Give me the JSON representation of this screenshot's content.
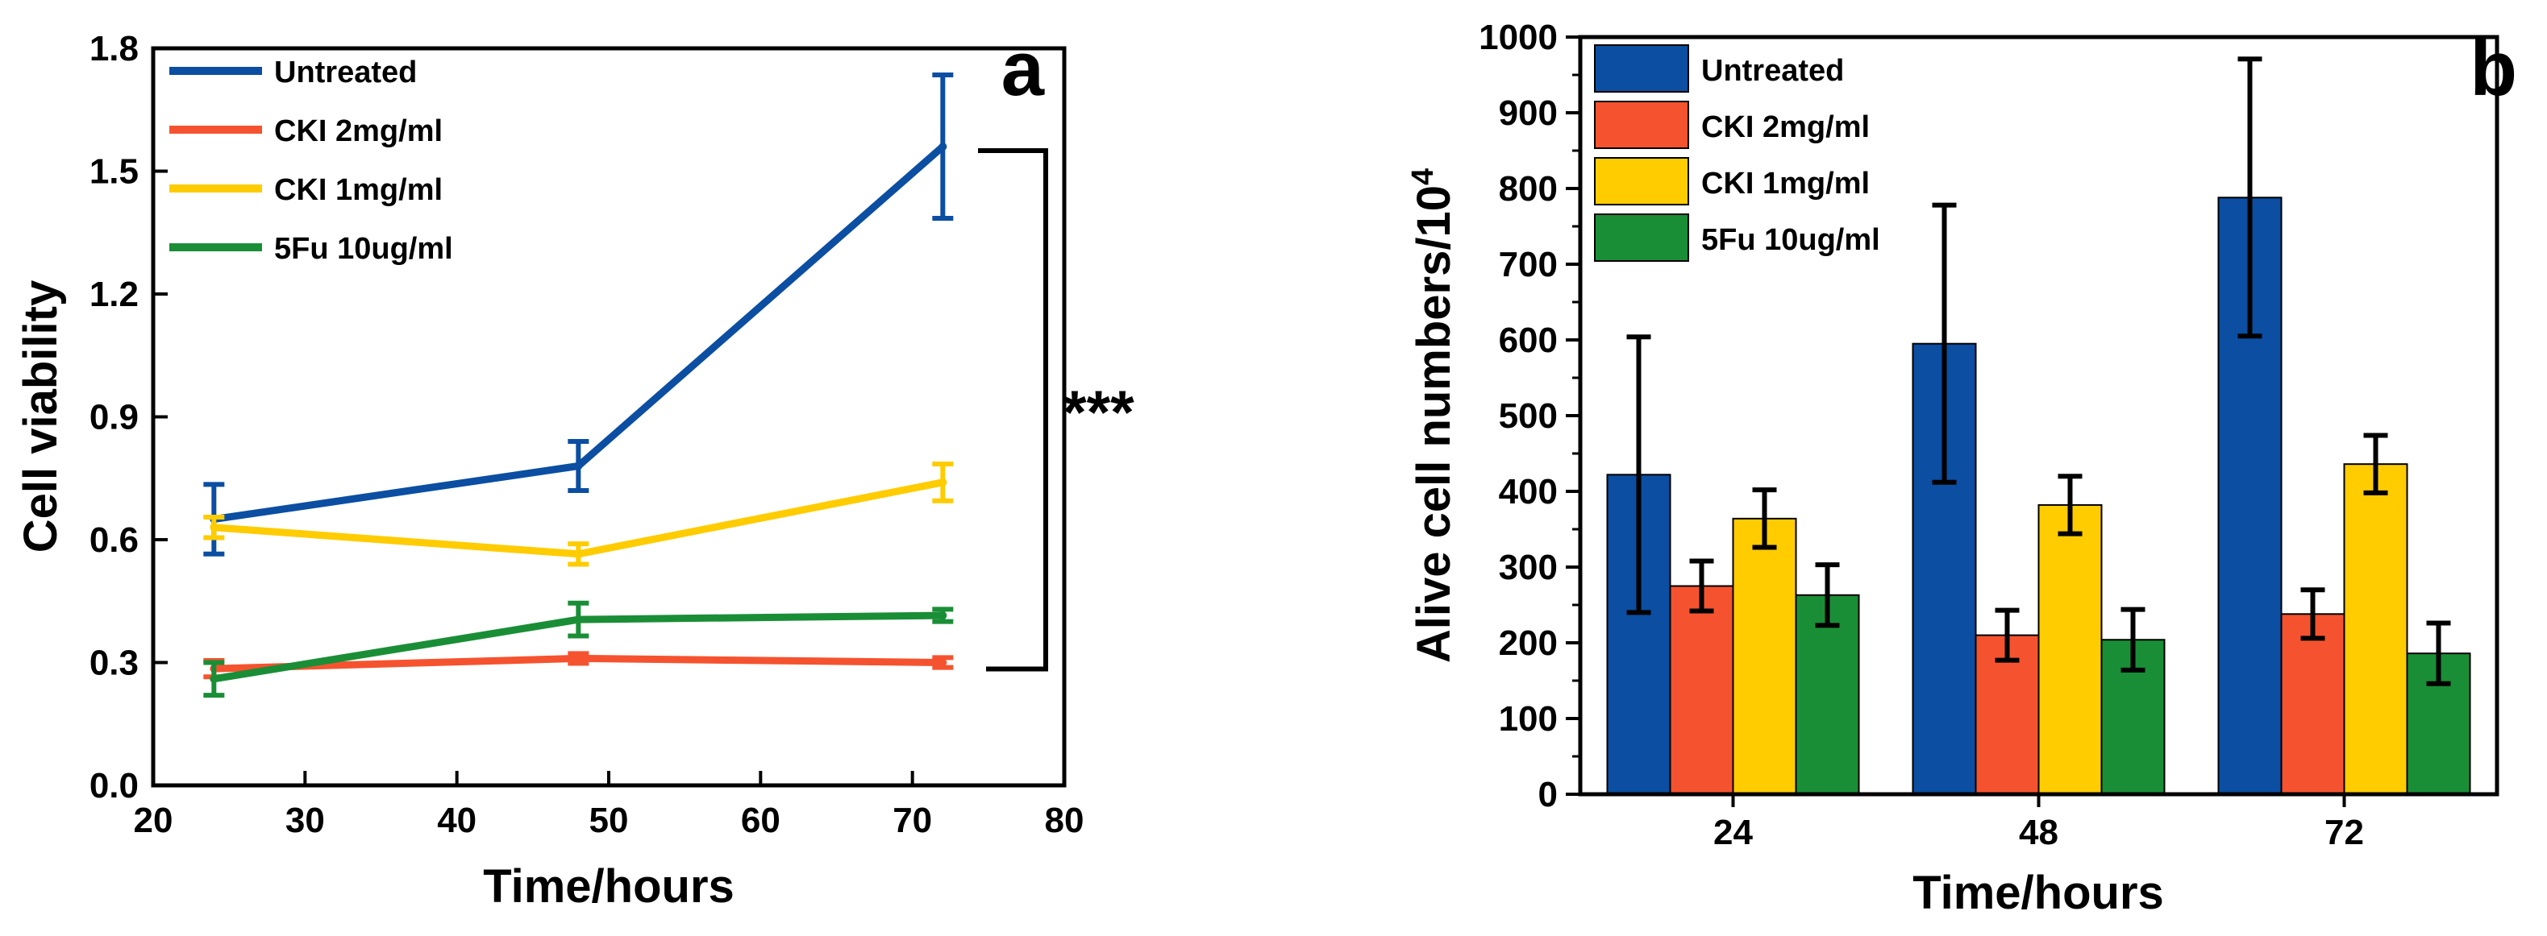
{
  "chart_data": [
    {
      "type": "line",
      "panel_label": "a",
      "xlabel": "Time/hours",
      "ylabel": "Cell viability",
      "xlim": [
        20,
        80
      ],
      "ylim": [
        0.0,
        1.8
      ],
      "x_ticks": [
        "20",
        "30",
        "40",
        "50",
        "60",
        "70",
        "80"
      ],
      "y_ticks": [
        "0.0",
        "0.3",
        "0.6",
        "0.9",
        "1.2",
        "1.5",
        "1.8"
      ],
      "legend_position": "top-left",
      "significance": {
        "label": "***",
        "between": [
          "Untreated",
          "CKI 2mg/ml"
        ],
        "x": 72
      },
      "series": [
        {
          "name": "Untreated",
          "color": "#0B4EA2",
          "x": [
            24,
            48,
            72
          ],
          "y": [
            0.65,
            0.78,
            1.56
          ],
          "err": [
            0.085,
            0.06,
            0.175
          ]
        },
        {
          "name": "CKI 2mg/ml",
          "color": "#F5532F",
          "x": [
            24,
            48,
            72
          ],
          "y": [
            0.285,
            0.31,
            0.3
          ],
          "err": [
            0.02,
            0.012,
            0.012
          ]
        },
        {
          "name": "CKI 1mg/ml",
          "color": "#FFCC00",
          "x": [
            24,
            48,
            72
          ],
          "y": [
            0.63,
            0.565,
            0.74
          ],
          "err": [
            0.025,
            0.025,
            0.045
          ]
        },
        {
          "name": "5Fu 10ug/ml",
          "color": "#1A8E36",
          "x": [
            24,
            48,
            72
          ],
          "y": [
            0.26,
            0.405,
            0.415
          ],
          "err": [
            0.04,
            0.04,
            0.015
          ]
        }
      ]
    },
    {
      "type": "bar",
      "panel_label": "b",
      "xlabel": "Time/hours",
      "ylabel": "Alive cell numbers/10",
      "ylabel_superscript": "4",
      "ylim": [
        0,
        1000
      ],
      "y_ticks": [
        "0",
        "100",
        "200",
        "300",
        "400",
        "500",
        "600",
        "700",
        "800",
        "900",
        "1000"
      ],
      "categories": [
        "24",
        "48",
        "72"
      ],
      "legend_position": "top-left",
      "series": [
        {
          "name": "Untreated",
          "color": "#0B4EA2",
          "values": [
            422,
            595,
            788
          ],
          "err": [
            182,
            183,
            183
          ]
        },
        {
          "name": "CKI 2mg/ml",
          "color": "#F5532F",
          "values": [
            275,
            210,
            238
          ],
          "err": [
            33,
            33,
            32
          ]
        },
        {
          "name": "CKI 1mg/ml",
          "color": "#FFCC00",
          "values": [
            364,
            382,
            436
          ],
          "err": [
            38,
            38,
            38
          ]
        },
        {
          "name": "5Fu 10ug/ml",
          "color": "#1A8E36",
          "values": [
            263,
            204,
            186
          ],
          "err": [
            40,
            40,
            40
          ]
        }
      ]
    }
  ]
}
